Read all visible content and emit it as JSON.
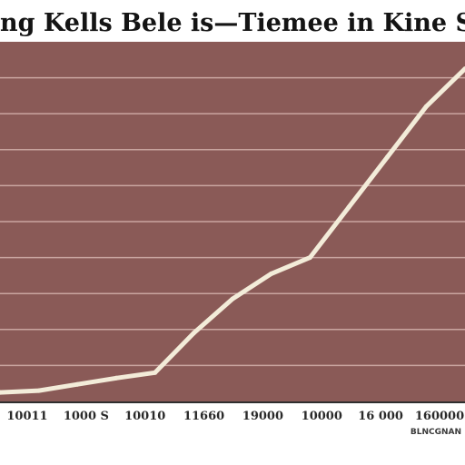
{
  "chart_data": {
    "type": "line",
    "title": "ng Kells Bele is—Tiemee in Kine Seles",
    "xlabel": "",
    "ylabel": "",
    "x_tick_labels": [
      "10011",
      "1000 S",
      "10010",
      "11660",
      "19000",
      "10000",
      "16 000",
      "160000"
    ],
    "corner_note": "BLNCGNAN",
    "x": [
      0,
      1,
      2,
      3,
      4,
      5,
      6,
      7,
      8,
      9,
      10,
      11,
      12
    ],
    "values": [
      0.5,
      0.6,
      0.95,
      1.3,
      1.6,
      3.8,
      5.7,
      7.1,
      8.0,
      10.8,
      13.6,
      16.4,
      18.5
    ],
    "ylim": [
      0,
      20
    ],
    "xlim": [
      0,
      12
    ],
    "grid": true,
    "colors": {
      "background": "#8a5a57",
      "line": "#f3ecd9",
      "grid": "#c9a5a0",
      "baseline": "#2f2f2f"
    }
  }
}
